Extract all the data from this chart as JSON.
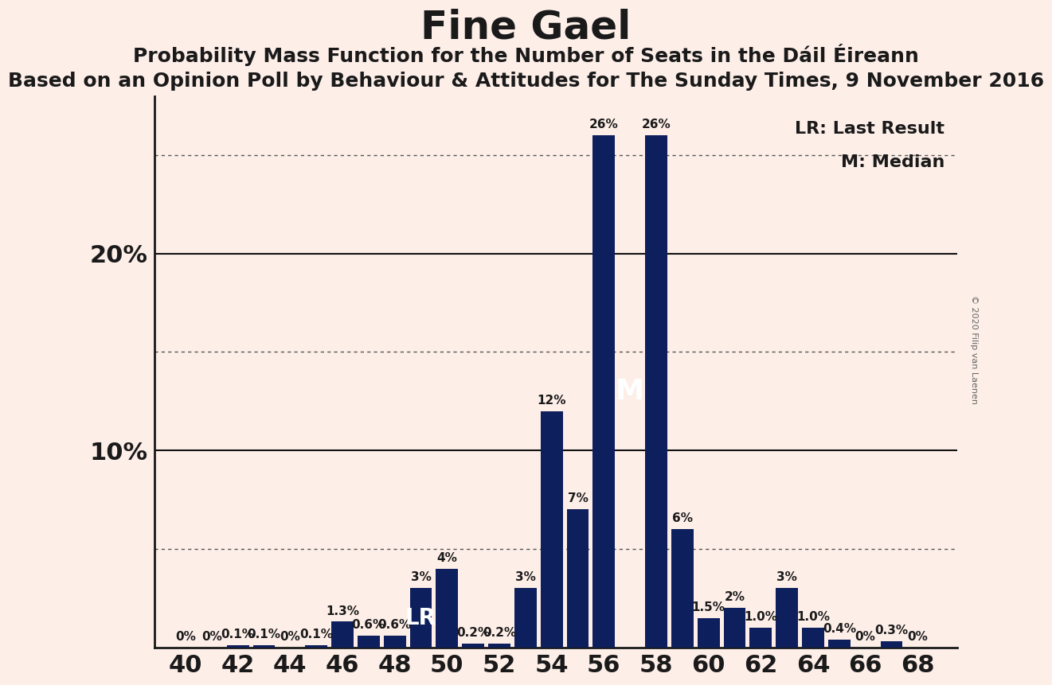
{
  "title": "Fine Gael",
  "subtitle": "Probability Mass Function for the Number of Seats in the Dáil Éireann",
  "subtitle2": "Based on an Opinion Poll by Behaviour & Attitudes for The Sunday Times, 9 November 2016",
  "copyright": "© 2020 Filip van Laenen",
  "legend_lr": "LR: Last Result",
  "legend_m": "M: Median",
  "bar_color": "#0d1f5c",
  "background_color": "#fdeee8",
  "seats": [
    40,
    41,
    42,
    43,
    44,
    45,
    46,
    47,
    48,
    49,
    50,
    51,
    52,
    53,
    54,
    55,
    56,
    57,
    58,
    59,
    60,
    61,
    62,
    63,
    64,
    65,
    66,
    67,
    68
  ],
  "probabilities": [
    0.0,
    0.0,
    0.1,
    0.1,
    0.0,
    0.1,
    1.3,
    0.6,
    0.6,
    3.0,
    4.0,
    0.2,
    0.2,
    3.0,
    12.0,
    7.0,
    26.0,
    0.0,
    26.0,
    6.0,
    1.5,
    2.0,
    1.0,
    3.0,
    1.0,
    0.4,
    0.0,
    0.3,
    0.0
  ],
  "prob_labels": [
    "0%",
    "0%",
    "0.1%",
    "0.1%",
    "0%",
    "0.1%",
    "1.3%",
    "0.6%",
    "0.6%",
    "LR",
    "4%",
    "0.2%",
    "0.2%",
    "3%",
    "12%",
    "7%",
    "26%",
    "",
    "26%",
    "6%",
    "1.5%",
    "2%",
    "1.0%",
    "3%",
    "1.0%",
    "0.4%",
    "0%",
    "0.3%",
    "0%"
  ],
  "lr_seat": 49,
  "median_seat": 56,
  "ylim": [
    0,
    28
  ],
  "dotted_lines": [
    5,
    15,
    25
  ],
  "solid_lines": [
    10,
    20
  ],
  "title_fontsize": 36,
  "subtitle_fontsize": 18,
  "subtitle2_fontsize": 18,
  "label_fontsize": 11,
  "tick_fontsize": 22,
  "legend_fontsize": 16,
  "copyright_fontsize": 8
}
